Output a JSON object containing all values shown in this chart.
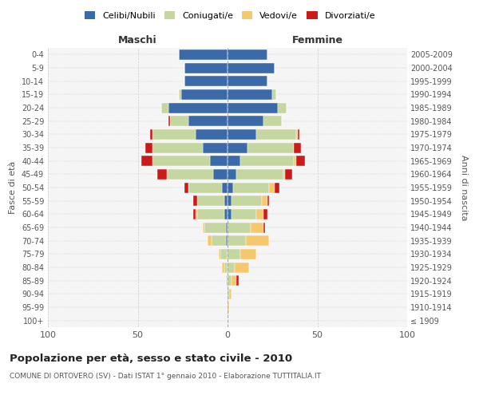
{
  "age_groups": [
    "100+",
    "95-99",
    "90-94",
    "85-89",
    "80-84",
    "75-79",
    "70-74",
    "65-69",
    "60-64",
    "55-59",
    "50-54",
    "45-49",
    "40-44",
    "35-39",
    "30-34",
    "25-29",
    "20-24",
    "15-19",
    "10-14",
    "5-9",
    "0-4"
  ],
  "birth_years": [
    "≤ 1909",
    "1910-1914",
    "1915-1919",
    "1920-1924",
    "1925-1929",
    "1930-1934",
    "1935-1939",
    "1940-1944",
    "1945-1949",
    "1950-1954",
    "1955-1959",
    "1960-1964",
    "1965-1969",
    "1970-1974",
    "1975-1979",
    "1980-1984",
    "1985-1989",
    "1990-1994",
    "1995-1999",
    "2000-2004",
    "2005-2009"
  ],
  "maschi": {
    "celibi": [
      0,
      0,
      0,
      0,
      0,
      0,
      1,
      1,
      2,
      2,
      3,
      8,
      10,
      14,
      18,
      22,
      33,
      26,
      24,
      24,
      27
    ],
    "coniugati": [
      0,
      0,
      0,
      1,
      2,
      4,
      8,
      12,
      15,
      15,
      19,
      26,
      32,
      28,
      24,
      10,
      4,
      1,
      0,
      0,
      0
    ],
    "vedovi": [
      0,
      0,
      0,
      0,
      1,
      1,
      2,
      1,
      1,
      0,
      0,
      0,
      0,
      0,
      0,
      0,
      0,
      0,
      0,
      0,
      0
    ],
    "divorziati": [
      0,
      0,
      0,
      0,
      0,
      0,
      0,
      0,
      1,
      2,
      2,
      5,
      6,
      4,
      1,
      1,
      0,
      0,
      0,
      0,
      0
    ]
  },
  "femmine": {
    "nubili": [
      0,
      0,
      0,
      0,
      0,
      0,
      0,
      0,
      2,
      2,
      3,
      5,
      7,
      11,
      16,
      20,
      28,
      25,
      22,
      26,
      22
    ],
    "coniugate": [
      0,
      0,
      1,
      2,
      4,
      7,
      10,
      13,
      14,
      17,
      20,
      26,
      30,
      26,
      22,
      10,
      5,
      2,
      0,
      0,
      0
    ],
    "vedove": [
      0,
      1,
      1,
      3,
      8,
      9,
      13,
      7,
      4,
      3,
      3,
      1,
      1,
      0,
      1,
      0,
      0,
      0,
      0,
      0,
      0
    ],
    "divorziate": [
      0,
      0,
      0,
      1,
      0,
      0,
      0,
      1,
      2,
      1,
      3,
      4,
      5,
      4,
      1,
      0,
      0,
      0,
      0,
      0,
      0
    ]
  },
  "colors": {
    "celibi": "#3a6aa8",
    "coniugati": "#c5d6a0",
    "vedovi": "#f5c86e",
    "divorziati": "#cc1a1a"
  },
  "xlim": 100,
  "title": "Popolazione per età, sesso e stato civile - 2010",
  "subtitle": "COMUNE DI ORTOVERO (SV) - Dati ISTAT 1° gennaio 2010 - Elaborazione TUTTITALIA.IT",
  "ylabel_left": "Fasce di età",
  "ylabel_right": "Anni di nascita",
  "xlabel_left": "Maschi",
  "xlabel_right": "Femmine",
  "background_color": "#ffffff",
  "grid_color": "#cccccc",
  "ax_bg": "#f5f5f5"
}
